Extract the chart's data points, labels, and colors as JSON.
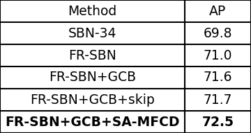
{
  "headers": [
    "Method",
    "AP"
  ],
  "rows": [
    [
      "SBN-34",
      "69.8"
    ],
    [
      "FR-SBN",
      "71.0"
    ],
    [
      "FR-SBN+GCB",
      "71.6"
    ],
    [
      "FR-SBN+GCB+skip",
      "71.7"
    ],
    [
      "FR-SBN+GCB+SA-MFCD",
      "72.5"
    ]
  ],
  "background_color": "#ffffff",
  "line_color": "#000000",
  "text_color": "#000000",
  "fontsize": 13.5,
  "col_split": 0.735,
  "lw": 1.5
}
